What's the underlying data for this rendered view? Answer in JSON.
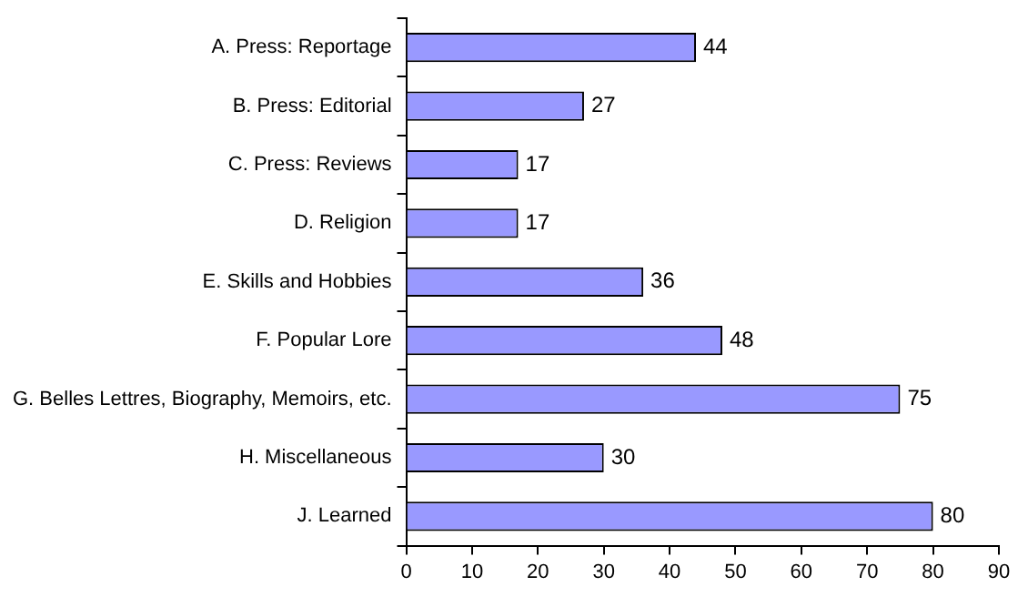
{
  "chart_data": {
    "type": "bar",
    "orientation": "horizontal",
    "categories": [
      "A. Press: Reportage",
      "B. Press: Editorial",
      "C. Press: Reviews",
      "D. Religion",
      "E. Skills and Hobbies",
      "F. Popular Lore",
      "G. Belles Lettres, Biography, Memoirs, etc.",
      "H. Miscellaneous",
      "J. Learned"
    ],
    "values": [
      44,
      27,
      17,
      17,
      36,
      48,
      75,
      30,
      80
    ],
    "color": "#9999ff",
    "xlim": [
      0,
      90
    ],
    "xticks": [
      0,
      10,
      20,
      30,
      40,
      50,
      60,
      70,
      80,
      90
    ],
    "data_labels": true,
    "grid": false,
    "legend": false
  }
}
